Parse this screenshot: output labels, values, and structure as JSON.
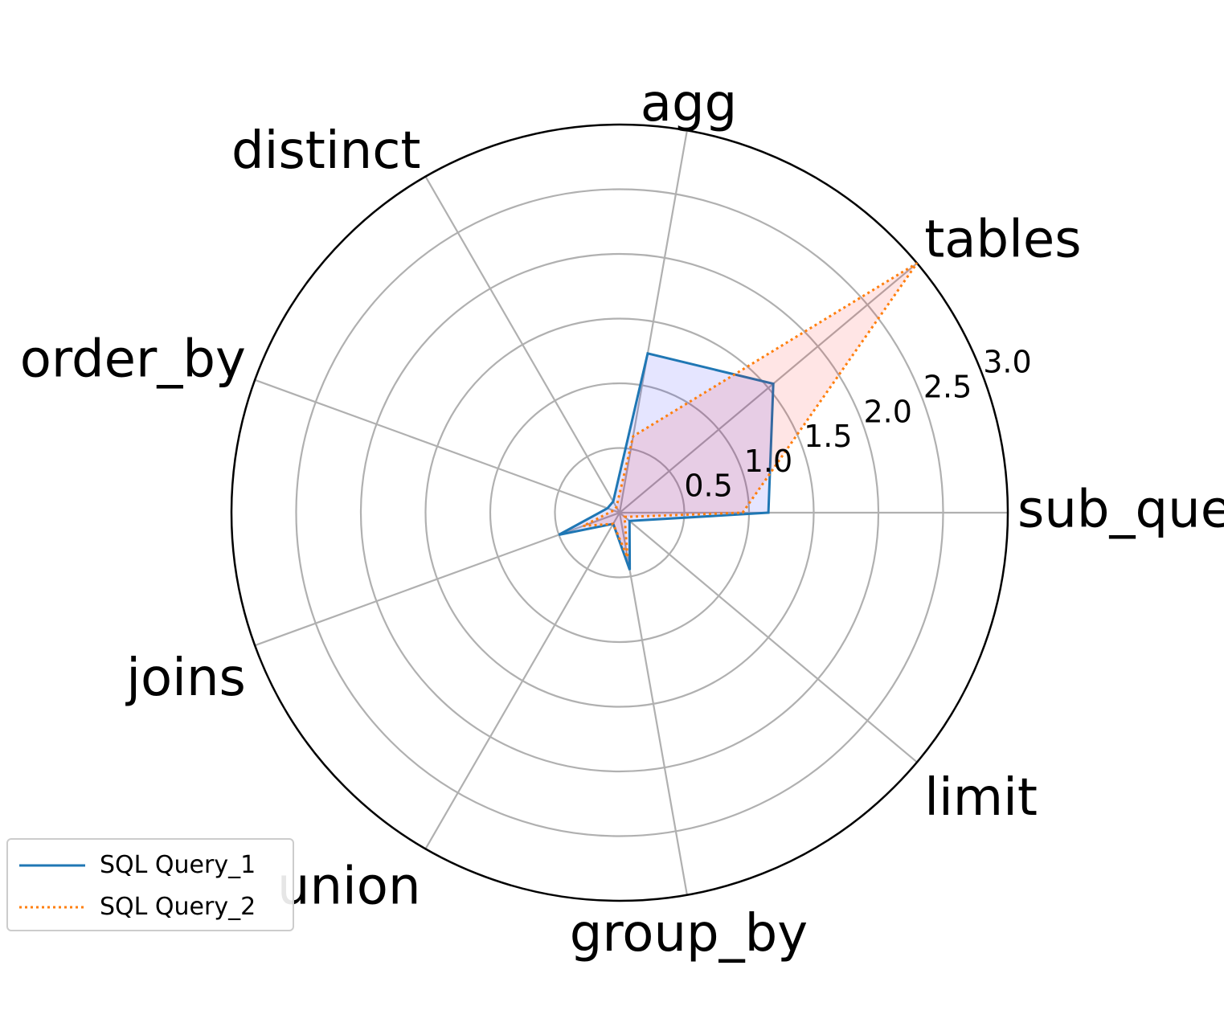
{
  "chart_data": {
    "type": "radar",
    "title": "",
    "categories": [
      "sub_queries",
      "tables",
      "agg",
      "distinct",
      "order_by",
      "joins",
      "union",
      "group_by",
      "limit"
    ],
    "series": [
      {
        "name": "SQL Query_1",
        "values": [
          1.15,
          1.55,
          1.25,
          0.1,
          0.1,
          0.5,
          0.1,
          0.45,
          0.1
        ],
        "color": "#1f77b4",
        "fill": "#0000ff",
        "line_style": "solid"
      },
      {
        "name": "SQL Query_2",
        "values": [
          0.95,
          3.0,
          0.6,
          0.05,
          0.05,
          0.3,
          0.1,
          0.35,
          0.05
        ],
        "color": "#ff7f0e",
        "fill": "#ff0000",
        "line_style": "dotted"
      }
    ],
    "r_ticks": [
      "0.5",
      "1.0",
      "1.5",
      "2.0",
      "2.5",
      "3.0"
    ],
    "rlim": [
      0,
      3.0
    ],
    "grid": true,
    "legend_position": "lower-left"
  }
}
